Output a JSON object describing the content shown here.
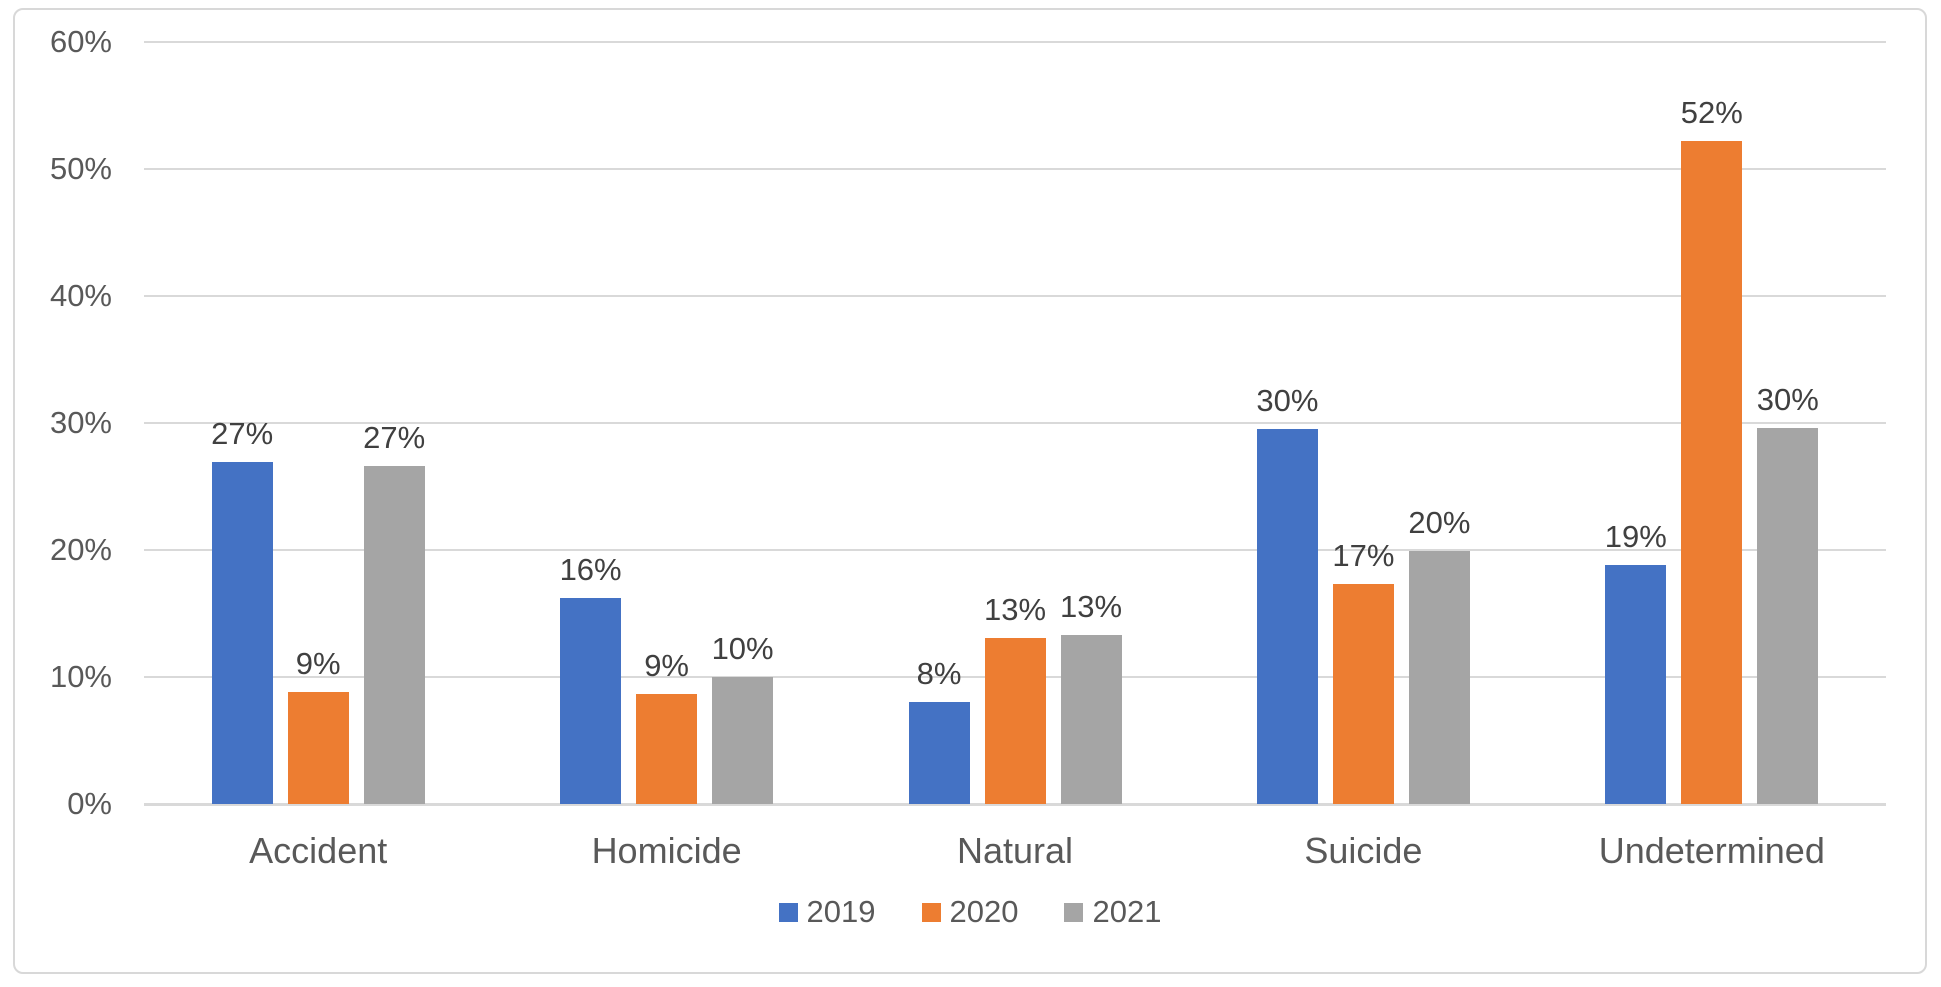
{
  "chart_data": {
    "type": "bar",
    "title": "",
    "xlabel": "",
    "ylabel": "",
    "categories": [
      "Accident",
      "Homicide",
      "Natural",
      "Suicide",
      "Undetermined"
    ],
    "series": [
      {
        "name": "2019",
        "color": "#4472C4",
        "values": [
          26.9,
          16.2,
          8.0,
          29.5,
          18.8
        ],
        "labels": [
          "27%",
          "16%",
          "8%",
          "30%",
          "19%"
        ]
      },
      {
        "name": "2020",
        "color": "#ED7D31",
        "values": [
          8.8,
          8.7,
          13.1,
          17.3,
          52.2
        ],
        "labels": [
          "9%",
          "9%",
          "13%",
          "17%",
          "52%"
        ]
      },
      {
        "name": "2021",
        "color": "#A5A5A5",
        "values": [
          26.6,
          10.0,
          13.3,
          19.9,
          29.6
        ],
        "labels": [
          "27%",
          "10%",
          "13%",
          "20%",
          "30%"
        ]
      }
    ],
    "ylim": [
      0,
      60
    ],
    "ytick_step": 10,
    "ytick_labels": [
      "0%",
      "10%",
      "20%",
      "30%",
      "40%",
      "50%",
      "60%"
    ],
    "grid": true,
    "gridline_color": "#D9D9D9",
    "axis_line_color": "#D9D9D9",
    "tick_text_color": "#595959",
    "data_label_color": "#404040",
    "legend_position": "bottom"
  }
}
